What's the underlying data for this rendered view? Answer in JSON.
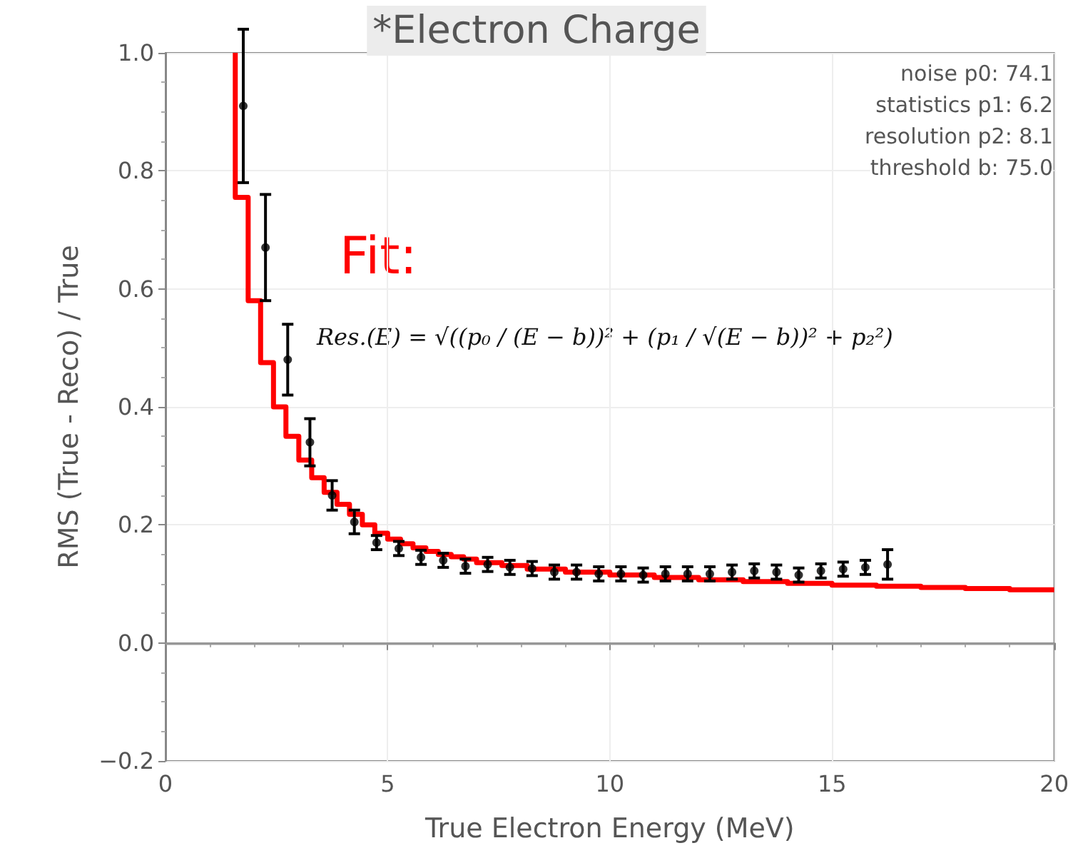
{
  "chart_data": {
    "type": "scatter",
    "title": "*Electron Charge",
    "xlabel": "True Electron Energy (MeV)",
    "ylabel": "RMS (True - Reco) / True",
    "annotations": [
      "noise p0: 74.1",
      "statistics p1: 6.2",
      "resolution p2: 8.1",
      "threshold b: 75.0",
      "Fit:",
      "Res.(E) = √((p₀ / (E − b))² + (p₁ / √(E − b))² + p₂²)"
    ],
    "xlim": [
      0,
      20
    ],
    "xticks": [
      0,
      5,
      10,
      15,
      20
    ],
    "ylim": [
      -0.2,
      1.0
    ],
    "yticks": [
      {
        "value": -0.2,
        "label": "−0.2"
      },
      {
        "value": 0,
        "label": "0.0"
      },
      {
        "value": 0.2,
        "label": "0.2"
      },
      {
        "value": 0.4,
        "label": "0.4"
      },
      {
        "value": 0.6,
        "label": "0.6"
      },
      {
        "value": 0.8,
        "label": "0.8"
      },
      {
        "value": 1,
        "label": "1.0"
      }
    ],
    "grid": true,
    "ref_lines": [
      {
        "axis": "y",
        "value": 0,
        "label": null,
        "color": "#999999"
      }
    ],
    "series": [
      {
        "type": "step",
        "color": "#ff0000",
        "marker": "none",
        "x": [
          1.57,
          1.86,
          2.14,
          2.43,
          2.71,
          3.0,
          3.29,
          3.57,
          3.86,
          4.14,
          4.43,
          4.71,
          5.0,
          5.29,
          5.57,
          5.86,
          6.14,
          6.43,
          6.71,
          7.0,
          7.57,
          8.14,
          9,
          10,
          11,
          12,
          13,
          14,
          15,
          16,
          17,
          18,
          19,
          20
        ],
        "values": [
          1.0,
          0.755,
          0.58,
          0.475,
          0.4,
          0.35,
          0.31,
          0.28,
          0.255,
          0.235,
          0.218,
          0.2,
          0.186,
          0.176,
          0.168,
          0.161,
          0.155,
          0.15,
          0.146,
          0.142,
          0.136,
          0.131,
          0.125,
          0.12,
          0.115,
          0.111,
          0.107,
          0.104,
          0.101,
          0.098,
          0.096,
          0.094,
          0.092,
          0.09
        ]
      },
      {
        "color": "#000000",
        "marker": "circle",
        "x": [
          1.75,
          2.25,
          2.75,
          3.25,
          3.75,
          4.25,
          4.75,
          5.25,
          5.75,
          6.25,
          6.75,
          7.25,
          7.75,
          8.25,
          8.75,
          9.25,
          9.75,
          10.25,
          10.75,
          11.25,
          11.75,
          12.25,
          12.75,
          13.25,
          13.75,
          14.25,
          14.75,
          15.25,
          15.75,
          16.25
        ],
        "values": [
          0.91,
          0.67,
          0.48,
          0.34,
          0.25,
          0.205,
          0.17,
          0.16,
          0.145,
          0.14,
          0.13,
          0.133,
          0.128,
          0.126,
          0.12,
          0.12,
          0.117,
          0.117,
          0.115,
          0.117,
          0.117,
          0.117,
          0.12,
          0.122,
          0.12,
          0.115,
          0.122,
          0.125,
          0.128,
          0.133
        ],
        "errors": [
          0.13,
          0.09,
          0.06,
          0.04,
          0.025,
          0.02,
          0.012,
          0.012,
          0.012,
          0.012,
          0.012,
          0.012,
          0.012,
          0.012,
          0.012,
          0.012,
          0.012,
          0.012,
          0.012,
          0.012,
          0.012,
          0.012,
          0.012,
          0.012,
          0.012,
          0.012,
          0.012,
          0.012,
          0.012,
          0.025
        ]
      }
    ]
  }
}
